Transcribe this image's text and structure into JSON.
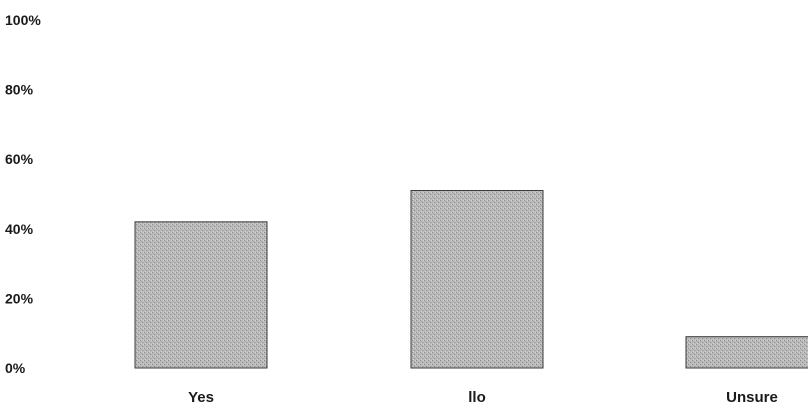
{
  "chart_data": {
    "type": "bar",
    "title": "",
    "xlabel": "",
    "ylabel": "",
    "categories": [
      "Yes",
      "No",
      "Unsure"
    ],
    "category_labels_as_printed": [
      "Yes",
      "llo",
      "Unsure"
    ],
    "values": [
      42,
      51,
      9
    ],
    "ylim": [
      0,
      100
    ],
    "yticks": [
      "0%",
      "20%",
      "40%",
      "60%",
      "80%",
      "100%"
    ],
    "grid": false,
    "legend": "none",
    "bar_color": "#b4b4b4"
  }
}
